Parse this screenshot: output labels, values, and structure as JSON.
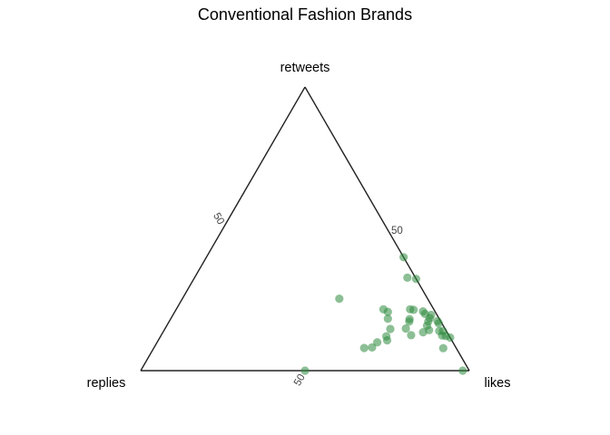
{
  "chart_data": {
    "type": "scatter",
    "subtype": "ternary",
    "title": "Conventional Fashion Brands",
    "axes": {
      "top": "retweets",
      "left": "replies",
      "right": "likes"
    },
    "ticks": {
      "retweets": [
        "50"
      ],
      "replies": [
        "50"
      ],
      "likes": [
        "50"
      ]
    },
    "point_color": "#2e8b3e",
    "units": "percent",
    "points": [
      {
        "likes": 50,
        "replies": 50,
        "retweets": 0
      },
      {
        "likes": 98,
        "replies": 2,
        "retweets": 0
      },
      {
        "likes": 75,
        "replies": 0,
        "retweets": 50
      },
      {
        "likes": 79,
        "replies": 3,
        "retweets": 40
      },
      {
        "likes": 69,
        "replies": 0,
        "retweets": 33
      },
      {
        "likes": 64,
        "replies": 36,
        "retweets": 34
      },
      {
        "likes": 78,
        "replies": 22,
        "retweets": 12
      },
      {
        "likes": 70,
        "replies": 17,
        "retweets": 24
      },
      {
        "likes": 72,
        "replies": 16,
        "retweets": 23
      },
      {
        "likes": 72,
        "replies": 17,
        "retweets": 20
      },
      {
        "likes": 79,
        "replies": 8,
        "retweets": 24
      },
      {
        "likes": 81,
        "replies": 7,
        "retweets": 24
      },
      {
        "likes": 83,
        "replies": 4,
        "retweets": 23
      },
      {
        "likes": 85,
        "replies": 3,
        "retweets": 20
      },
      {
        "likes": 88,
        "replies": 4,
        "retweets": 23
      },
      {
        "likes": 88,
        "replies": 2,
        "retweets": 22
      },
      {
        "likes": 80,
        "replies": 10,
        "retweets": 20
      },
      {
        "likes": 76,
        "replies": 10,
        "retweets": 18
      },
      {
        "likes": 82,
        "replies": 4,
        "retweets": 18
      },
      {
        "likes": 84,
        "replies": 1,
        "retweets": 18
      },
      {
        "likes": 84,
        "replies": 1,
        "retweets": 17
      },
      {
        "likes": 80,
        "replies": 5,
        "retweets": 16
      },
      {
        "likes": 85,
        "replies": 1,
        "retweets": 14
      },
      {
        "likes": 70,
        "replies": 17,
        "retweets": 15
      },
      {
        "likes": 74,
        "replies": 12,
        "retweets": 15
      },
      {
        "likes": 79,
        "replies": 5,
        "retweets": 14
      },
      {
        "likes": 76,
        "replies": 7,
        "retweets": 13
      },
      {
        "likes": 78,
        "replies": 2,
        "retweets": 13
      },
      {
        "likes": 83,
        "replies": 2,
        "retweets": 12
      },
      {
        "likes": 85,
        "replies": 1,
        "retweets": 12
      },
      {
        "likes": 73,
        "replies": 11,
        "retweets": 12
      },
      {
        "likes": 68,
        "replies": 19,
        "retweets": 12
      },
      {
        "likes": 67,
        "replies": 23,
        "retweets": 10
      },
      {
        "likes": 65,
        "replies": 25,
        "retweets": 8
      },
      {
        "likes": 91,
        "replies": 0,
        "retweets": 12
      },
      {
        "likes": 89,
        "replies": 4,
        "retweets": 8
      },
      {
        "likes": 64,
        "replies": 28,
        "retweets": 8
      }
    ]
  }
}
